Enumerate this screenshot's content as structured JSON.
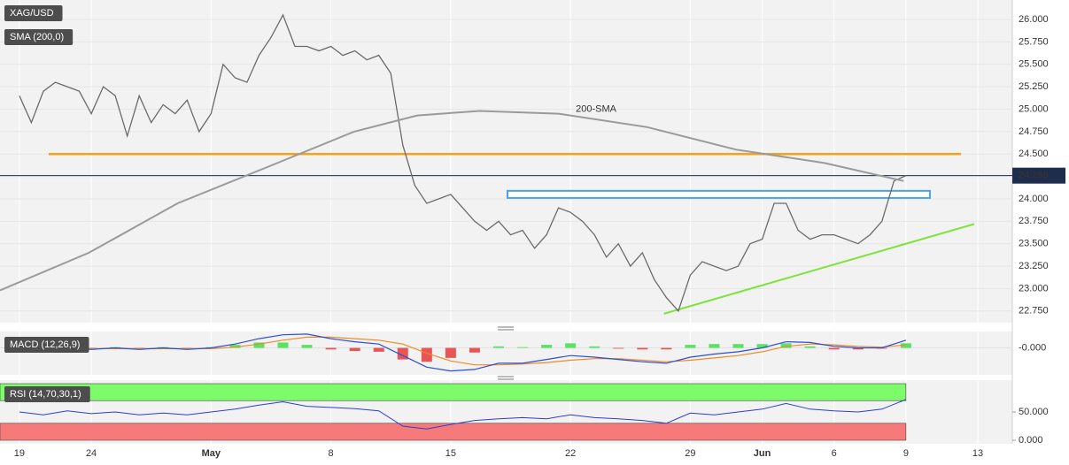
{
  "chart_data": [
    {
      "type": "line",
      "series": [
        {
          "name": "XAG/USD",
          "color": "#6b6b6b",
          "x": [
            0,
            0.5,
            1,
            1.5,
            2,
            2.5,
            3,
            3.5,
            4,
            4.5,
            5,
            5.5,
            6,
            6.5,
            7,
            7.5,
            8,
            8.5,
            9,
            9.5,
            10,
            10.5,
            11,
            11.5,
            12,
            12.5,
            13,
            13.5,
            14,
            14.5,
            15,
            15.5,
            16,
            16.5,
            17,
            17.5,
            18,
            18.5,
            19,
            19.5,
            20,
            20.5,
            21,
            21.5,
            22,
            22.5,
            23,
            23.5,
            24,
            24.5,
            25,
            25.5,
            26,
            26.5,
            27,
            27.5,
            28,
            28.5,
            29,
            29.5,
            30,
            30.5,
            31,
            31.5,
            32,
            32.5,
            33,
            33.5,
            34,
            34.5,
            35,
            35.5,
            36,
            36.5,
            37
          ],
          "values": [
            25.15,
            24.85,
            25.2,
            25.3,
            25.25,
            25.2,
            24.95,
            25.25,
            25.15,
            24.7,
            25.15,
            24.85,
            25.05,
            24.95,
            25.1,
            24.75,
            24.95,
            25.5,
            25.35,
            25.3,
            25.6,
            25.8,
            26.05,
            25.7,
            25.7,
            25.65,
            25.7,
            25.6,
            25.65,
            25.55,
            25.6,
            25.4,
            24.6,
            24.15,
            23.95,
            24.0,
            24.05,
            23.9,
            23.75,
            23.65,
            23.75,
            23.6,
            23.65,
            23.45,
            23.6,
            23.9,
            23.85,
            23.75,
            23.6,
            23.35,
            23.5,
            23.25,
            23.4,
            23.1,
            22.9,
            22.75,
            23.15,
            23.3,
            23.25,
            23.2,
            23.25,
            23.5,
            23.55,
            23.95,
            23.95,
            23.65,
            23.55,
            23.6,
            23.6,
            23.55,
            23.5,
            23.6,
            23.75,
            24.2,
            24.259
          ]
        },
        {
          "name": "SMA (200,0)",
          "color": "#9a9a9a",
          "x": [
            -0.81,
            2.9,
            6.6,
            10.3,
            13.97,
            16.6,
            19.2,
            22.5,
            26.2,
            29.9,
            33.6,
            36.9
          ],
          "values": [
            22.98,
            23.4,
            23.95,
            24.35,
            24.75,
            24.93,
            24.98,
            24.95,
            24.8,
            24.55,
            24.4,
            24.2
          ]
        }
      ],
      "annotation": {
        "text": "200-SMA",
        "x": 24.07,
        "y": 25.0
      },
      "level": {
        "value": 24.5,
        "x": [
          1.22,
          39.3
        ],
        "color": "#f7a11a"
      },
      "zone": {
        "values": [
          24.03,
          24.07
        ],
        "x": [
          20.37,
          38.0
        ],
        "color": "#4aa3e8"
      },
      "trendline": {
        "x": [
          26.9,
          39.85
        ],
        "values": [
          22.72,
          23.72
        ],
        "color": "#7ee33a"
      },
      "last_price": 24.259,
      "xlim": [
        -0.81,
        41.44
      ],
      "xticks": [
        {
          "value": 0,
          "label": "19"
        },
        {
          "value": 3,
          "label": "24"
        },
        {
          "value": 8,
          "label": "May"
        },
        {
          "value": 13,
          "label": "8"
        },
        {
          "value": 18,
          "label": "15"
        },
        {
          "value": 23,
          "label": "22"
        },
        {
          "value": 28,
          "label": "29"
        },
        {
          "value": 31,
          "label": "Jun"
        },
        {
          "value": 34,
          "label": "6"
        },
        {
          "value": 37,
          "label": "9"
        },
        {
          "value": 40,
          "label": "13"
        }
      ],
      "ylim": [
        22.62,
        26.217
      ],
      "yticks": [
        {
          "value": 22.75,
          "label": "22.750"
        },
        {
          "value": 23,
          "label": "23.000"
        },
        {
          "value": 23.25,
          "label": "23.250"
        },
        {
          "value": 23.5,
          "label": "23.500"
        },
        {
          "value": 23.75,
          "label": "23.750"
        },
        {
          "value": 24,
          "label": "24.000"
        },
        {
          "value": 24.25,
          "label": "24.250"
        },
        {
          "value": 24.5,
          "label": "24.500"
        },
        {
          "value": 24.75,
          "label": "24.750"
        },
        {
          "value": 25,
          "label": "25.000"
        },
        {
          "value": 25.25,
          "label": "25.250"
        },
        {
          "value": 25.5,
          "label": "25.500"
        },
        {
          "value": 25.75,
          "label": "25.750"
        },
        {
          "value": 26,
          "label": "26.000"
        }
      ],
      "grid": true
    },
    {
      "type": "macd",
      "title": "MACD (12,26,9)",
      "x": [
        0,
        1,
        2,
        3,
        4,
        5,
        6,
        7,
        8,
        9,
        10,
        11,
        12,
        13,
        14,
        15,
        16,
        17,
        18,
        19,
        20,
        21,
        22,
        23,
        24,
        25,
        26,
        27,
        28,
        29,
        30,
        31,
        32,
        33,
        34,
        35,
        36,
        37
      ],
      "macd": {
        "color": "#2a4fd6",
        "values": [
          0,
          0.02,
          0,
          -0.02,
          0,
          -0.02,
          0,
          -0.02,
          0,
          0.05,
          0.12,
          0.17,
          0.18,
          0.12,
          0.08,
          0.05,
          -0.1,
          -0.25,
          -0.3,
          -0.28,
          -0.2,
          -0.2,
          -0.15,
          -0.1,
          -0.12,
          -0.15,
          -0.18,
          -0.2,
          -0.12,
          -0.08,
          -0.05,
          0,
          0.08,
          0.07,
          0.02,
          0,
          0,
          0.1
        ]
      },
      "signal": {
        "color": "#f08a24",
        "values": [
          0,
          0.01,
          0,
          -0.01,
          -0.01,
          -0.01,
          -0.01,
          -0.01,
          -0.01,
          0.01,
          0.05,
          0.1,
          0.14,
          0.14,
          0.12,
          0.1,
          0.05,
          -0.07,
          -0.17,
          -0.22,
          -0.22,
          -0.21,
          -0.19,
          -0.16,
          -0.14,
          -0.14,
          -0.16,
          -0.18,
          -0.16,
          -0.13,
          -0.1,
          -0.05,
          0.02,
          0.05,
          0.04,
          0.02,
          0.01,
          0.04
        ]
      },
      "histogram": {
        "colors": [
          "#3ee04a",
          "#e83a3a"
        ],
        "values": [
          0,
          0.01,
          0,
          -0.01,
          0.01,
          -0.01,
          0.01,
          -0.01,
          0.01,
          0.04,
          0.07,
          0.07,
          0.04,
          -0.02,
          -0.04,
          -0.05,
          -0.15,
          -0.18,
          -0.13,
          -0.06,
          0.02,
          0.01,
          0.04,
          0.06,
          0.02,
          -0.01,
          -0.02,
          -0.02,
          0.04,
          0.05,
          0.05,
          0.05,
          0.06,
          0.02,
          -0.02,
          -0.02,
          -0.01,
          0.06
        ]
      },
      "xlim": [
        -0.81,
        41.44
      ],
      "ylim": [
        -0.35,
        0.213
      ],
      "yticks": [
        {
          "value": 0,
          "label": "-0.000"
        }
      ]
    },
    {
      "type": "rsi",
      "title": "RSI (14,70,30,1)",
      "x": [
        0,
        1,
        2,
        3,
        4,
        5,
        6,
        7,
        8,
        9,
        10,
        11,
        12,
        13,
        14,
        15,
        16,
        17,
        18,
        19,
        20,
        21,
        22,
        23,
        24,
        25,
        26,
        27,
        28,
        29,
        30,
        31,
        32,
        33,
        34,
        35,
        36,
        37
      ],
      "values": [
        50,
        45,
        52,
        47,
        50,
        45,
        48,
        45,
        50,
        55,
        62,
        68,
        60,
        58,
        56,
        52,
        25,
        20,
        28,
        35,
        38,
        40,
        38,
        45,
        40,
        38,
        35,
        30,
        48,
        45,
        50,
        55,
        65,
        55,
        52,
        50,
        55,
        72
      ],
      "color": "#2a3fd0",
      "bands": [
        {
          "range": [
            70,
            100
          ],
          "color": "#7dfb6a"
        },
        {
          "range": [
            0,
            30
          ],
          "color": "#f77a7a"
        }
      ],
      "xlim": [
        -0.81,
        41.44
      ],
      "ylim": [
        -6.25,
        106.25
      ],
      "yticks": [
        0,
        50
      ],
      "ytick_labels": [
        "0.000",
        "50.000"
      ]
    }
  ]
}
